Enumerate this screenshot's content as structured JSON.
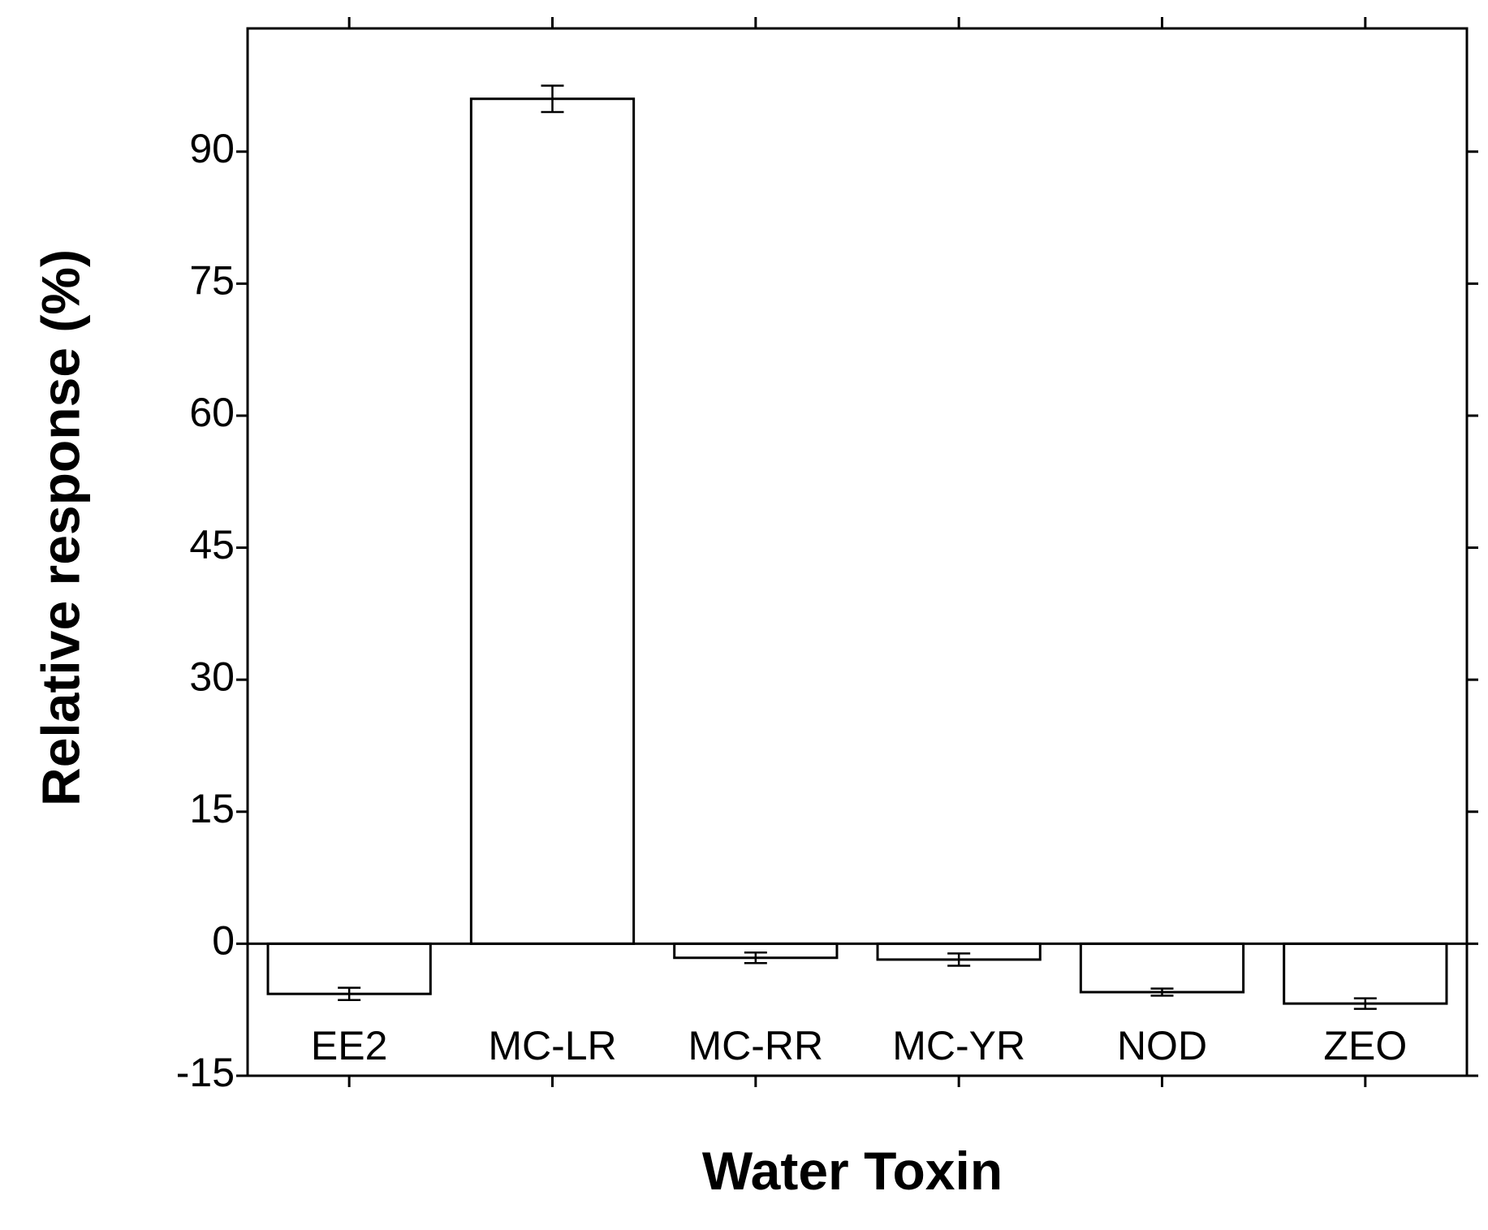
{
  "chart_data": {
    "type": "bar",
    "x_label": "Water Toxin",
    "y_label": "Relative response (%)",
    "categories": [
      "EE2",
      "MC-LR",
      "MC-RR",
      "MC-YR",
      "NOD",
      "ZEO"
    ],
    "values": [
      -5.7,
      96.0,
      -1.6,
      -1.8,
      -5.5,
      -6.8
    ],
    "errors": [
      0.7,
      1.5,
      0.6,
      0.7,
      0.4,
      0.6
    ],
    "color": "#ffffff",
    "ylim": [
      -15,
      104
    ],
    "yticks": [
      -15,
      0,
      15,
      30,
      45,
      60,
      75,
      90
    ],
    "grid": false
  }
}
